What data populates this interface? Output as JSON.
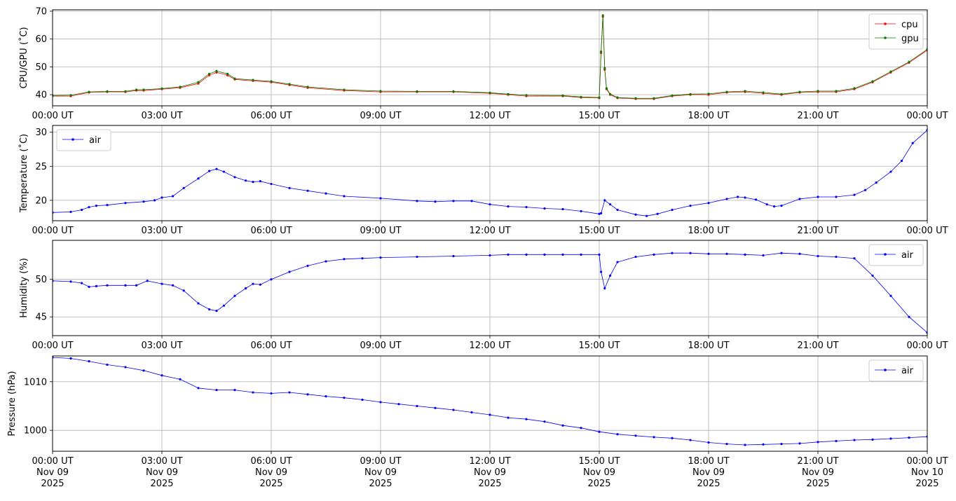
{
  "chart_data": [
    {
      "type": "line",
      "ylabel": "CPU/GPU (˚C)",
      "xlim": [
        "2025-11-09 00:00",
        "2025-11-10 00:00"
      ],
      "ylim": [
        36,
        70.5
      ],
      "yticks": [
        40,
        50,
        60,
        70
      ],
      "xtick_labels": [
        "00:00 UT",
        "03:00 UT",
        "06:00 UT",
        "09:00 UT",
        "12:00 UT",
        "15:00 UT",
        "18:00 UT",
        "21:00 UT",
        "00:00 UT"
      ],
      "grid": true,
      "legend": "top-right",
      "series": [
        {
          "name": "cpu",
          "color": "#ff0000",
          "x": [
            0,
            0.5,
            1,
            1.5,
            2,
            2.3,
            2.5,
            3,
            3.5,
            4,
            4.3,
            4.5,
            4.8,
            5,
            5.5,
            6,
            6.5,
            7,
            8,
            9,
            10,
            11,
            12,
            12.5,
            13,
            14,
            14.5,
            15,
            15.05,
            15.1,
            15.15,
            15.2,
            15.3,
            15.5,
            16,
            16.5,
            17,
            17.5,
            18,
            18.5,
            19,
            19.5,
            20,
            20.5,
            21,
            21.5,
            22,
            22.5,
            23,
            23.5,
            24
          ],
          "y": [
            39.5,
            39.5,
            40.8,
            41,
            41,
            41.5,
            41.5,
            42,
            42.5,
            44,
            47,
            48,
            47,
            45.5,
            45,
            44.5,
            43.5,
            42.5,
            41.5,
            41,
            41,
            41,
            40.5,
            40,
            39.5,
            39.5,
            39,
            38.8,
            55,
            68,
            49,
            42,
            40,
            38.8,
            38.5,
            38.5,
            39.5,
            40,
            40,
            40.8,
            41,
            40.5,
            40,
            40.8,
            41,
            41,
            42,
            44.5,
            48,
            51.5,
            56
          ]
        },
        {
          "name": "gpu",
          "color": "#008000",
          "x": [
            0,
            0.5,
            1,
            1.5,
            2,
            2.3,
            2.5,
            3,
            3.5,
            4,
            4.3,
            4.5,
            4.8,
            5,
            5.5,
            6,
            6.5,
            7,
            8,
            9,
            10,
            11,
            12,
            12.5,
            13,
            14,
            14.5,
            15,
            15.05,
            15.1,
            15.15,
            15.2,
            15.3,
            15.5,
            16,
            16.5,
            17,
            17.5,
            18,
            18.5,
            19,
            19.5,
            20,
            20.5,
            21,
            21.5,
            22,
            22.5,
            23,
            23.5,
            24
          ],
          "y": [
            39.7,
            39.8,
            41,
            41.2,
            41.2,
            41.8,
            41.8,
            42.2,
            42.8,
            44.5,
            47.5,
            48.5,
            47.5,
            45.8,
            45.3,
            44.8,
            43.8,
            42.8,
            41.8,
            41.3,
            41.2,
            41.2,
            40.7,
            40.2,
            39.8,
            39.7,
            39.2,
            39,
            55.5,
            68.5,
            49.5,
            42.3,
            40.2,
            39,
            38.7,
            38.7,
            39.7,
            40.2,
            40.3,
            41,
            41.3,
            40.8,
            40.2,
            41,
            41.3,
            41.3,
            42.3,
            44.8,
            48.3,
            51.8,
            56.3
          ]
        }
      ]
    },
    {
      "type": "line",
      "ylabel": "Temperature (˚C)",
      "xlim": [
        "2025-11-09 00:00",
        "2025-11-10 00:00"
      ],
      "ylim": [
        17,
        31
      ],
      "yticks": [
        20,
        25,
        30
      ],
      "xtick_labels": [
        "00:00 UT",
        "03:00 UT",
        "06:00 UT",
        "09:00 UT",
        "12:00 UT",
        "15:00 UT",
        "18:00 UT",
        "21:00 UT",
        "00:00 UT"
      ],
      "grid": true,
      "legend": "top-left",
      "series": [
        {
          "name": "air",
          "color": "#0000ff",
          "x": [
            0,
            0.5,
            0.8,
            1,
            1.2,
            1.5,
            2,
            2.5,
            2.8,
            3,
            3.3,
            3.6,
            4,
            4.3,
            4.5,
            4.7,
            5,
            5.3,
            5.5,
            5.7,
            6,
            6.5,
            7,
            7.5,
            8,
            9,
            10,
            10.5,
            11,
            11.5,
            12,
            12.5,
            13,
            13.5,
            14,
            14.5,
            15,
            15.05,
            15.15,
            15.3,
            15.5,
            16,
            16.3,
            16.6,
            17,
            17.5,
            18,
            18.5,
            18.8,
            19,
            19.3,
            19.6,
            19.8,
            20,
            20.5,
            21,
            21.5,
            22,
            22.3,
            22.6,
            23,
            23.3,
            23.6,
            24
          ],
          "y": [
            18.2,
            18.3,
            18.6,
            19,
            19.2,
            19.3,
            19.6,
            19.8,
            20,
            20.4,
            20.6,
            21.8,
            23.2,
            24.3,
            24.6,
            24.2,
            23.4,
            22.9,
            22.7,
            22.8,
            22.4,
            21.8,
            21.4,
            21,
            20.6,
            20.3,
            19.9,
            19.8,
            19.9,
            19.9,
            19.4,
            19.1,
            19,
            18.8,
            18.7,
            18.4,
            18,
            18.1,
            20,
            19.4,
            18.6,
            17.9,
            17.7,
            18,
            18.6,
            19.2,
            19.6,
            20.2,
            20.5,
            20.4,
            20.1,
            19.4,
            19.1,
            19.2,
            20.2,
            20.5,
            20.5,
            20.8,
            21.5,
            22.6,
            24.2,
            25.8,
            28.4,
            30.3
          ]
        }
      ]
    },
    {
      "type": "line",
      "ylabel": "Humidity (%)",
      "xlim": [
        "2025-11-09 00:00",
        "2025-11-10 00:00"
      ],
      "ylim": [
        42.5,
        55.2
      ],
      "yticks": [
        45,
        50
      ],
      "xtick_labels": [
        "00:00 UT",
        "03:00 UT",
        "06:00 UT",
        "09:00 UT",
        "12:00 UT",
        "15:00 UT",
        "18:00 UT",
        "21:00 UT",
        "00:00 UT"
      ],
      "grid": true,
      "legend": "top-right",
      "series": [
        {
          "name": "air",
          "color": "#0000ff",
          "x": [
            0,
            0.5,
            0.8,
            1,
            1.2,
            1.5,
            2,
            2.3,
            2.6,
            3,
            3.3,
            3.6,
            4,
            4.3,
            4.5,
            4.7,
            5,
            5.3,
            5.5,
            5.7,
            6,
            6.5,
            7,
            7.5,
            8,
            8.5,
            9,
            10,
            11,
            12,
            12.5,
            13,
            13.5,
            14,
            14.5,
            15,
            15.05,
            15.15,
            15.3,
            15.5,
            16,
            16.5,
            17,
            17.5,
            18,
            18.5,
            19,
            19.5,
            20,
            20.5,
            21,
            21.5,
            22,
            22.5,
            23,
            23.5,
            24
          ],
          "y": [
            49.8,
            49.7,
            49.5,
            49,
            49.1,
            49.2,
            49.2,
            49.2,
            49.8,
            49.4,
            49.2,
            48.5,
            46.8,
            46,
            45.8,
            46.5,
            47.8,
            48.8,
            49.4,
            49.3,
            50,
            51,
            51.8,
            52.4,
            52.7,
            52.8,
            52.9,
            53,
            53.1,
            53.2,
            53.3,
            53.3,
            53.3,
            53.3,
            53.3,
            53.3,
            51,
            48.8,
            50.5,
            52.3,
            53,
            53.3,
            53.5,
            53.5,
            53.4,
            53.4,
            53.3,
            53.2,
            53.5,
            53.4,
            53.1,
            53,
            52.8,
            50.5,
            47.8,
            45,
            42.9
          ]
        }
      ]
    },
    {
      "type": "line",
      "ylabel": "Pressure (hPa)",
      "xlim": [
        "2025-11-09 00:00",
        "2025-11-10 00:00"
      ],
      "ylim": [
        995.7,
        1015.3
      ],
      "yticks": [
        1000,
        1010
      ],
      "xtick_labels": [
        "00:00 UT\nNov 09\n2025",
        "03:00 UT\nNov 09\n2025",
        "06:00 UT\nNov 09\n2025",
        "09:00 UT\nNov 09\n2025",
        "12:00 UT\nNov 09\n2025",
        "15:00 UT\nNov 09\n2025",
        "18:00 UT\nNov 09\n2025",
        "21:00 UT\nNov 09\n2025",
        "00:00 UT\nNov 10\n2025"
      ],
      "grid": true,
      "legend": "top-right",
      "series": [
        {
          "name": "air",
          "color": "#0000ff",
          "x": [
            0,
            0.5,
            1,
            1.5,
            2,
            2.5,
            3,
            3.5,
            4,
            4.5,
            5,
            5.5,
            6,
            6.5,
            7,
            7.5,
            8,
            8.5,
            9,
            9.5,
            10,
            10.5,
            11,
            11.5,
            12,
            12.5,
            13,
            13.5,
            14,
            14.5,
            15,
            15.5,
            16,
            16.5,
            17,
            17.5,
            18,
            18.5,
            19,
            19.5,
            20,
            20.5,
            21,
            21.5,
            22,
            22.5,
            23,
            23.5,
            24
          ],
          "y": [
            1015,
            1014.8,
            1014.2,
            1013.5,
            1013,
            1012.3,
            1011.3,
            1010.5,
            1008.7,
            1008.3,
            1008.3,
            1007.8,
            1007.6,
            1007.8,
            1007.4,
            1007,
            1006.7,
            1006.3,
            1005.8,
            1005.4,
            1005,
            1004.6,
            1004.2,
            1003.7,
            1003.2,
            1002.6,
            1002.3,
            1001.8,
            1001,
            1000.5,
            999.7,
            999.2,
            998.9,
            998.6,
            998.4,
            998,
            997.5,
            997.2,
            997,
            997.1,
            997.2,
            997.3,
            997.6,
            997.8,
            998,
            998.1,
            998.3,
            998.5,
            998.7
          ]
        }
      ]
    }
  ]
}
